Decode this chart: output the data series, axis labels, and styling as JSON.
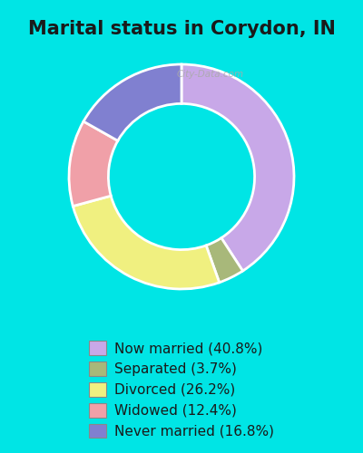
{
  "title": "Marital status in Corydon, IN",
  "background_color": "#00e5e5",
  "chart_bg_color": "#e8f5e9",
  "watermark": "City-Data.com",
  "segments": [
    {
      "label": "Now married (40.8%)",
      "value": 40.8,
      "color": "#c8a8e8"
    },
    {
      "label": "Separated (3.7%)",
      "value": 3.7,
      "color": "#a8b87a"
    },
    {
      "label": "Divorced (26.2%)",
      "value": 26.2,
      "color": "#f0f080"
    },
    {
      "label": "Widowed (12.4%)",
      "value": 12.4,
      "color": "#f0a0a8"
    },
    {
      "label": "Never married (16.8%)",
      "value": 16.8,
      "color": "#8080d0"
    }
  ],
  "start_angle": 90,
  "donut_width": 0.35,
  "legend_fontsize": 11,
  "title_fontsize": 15
}
